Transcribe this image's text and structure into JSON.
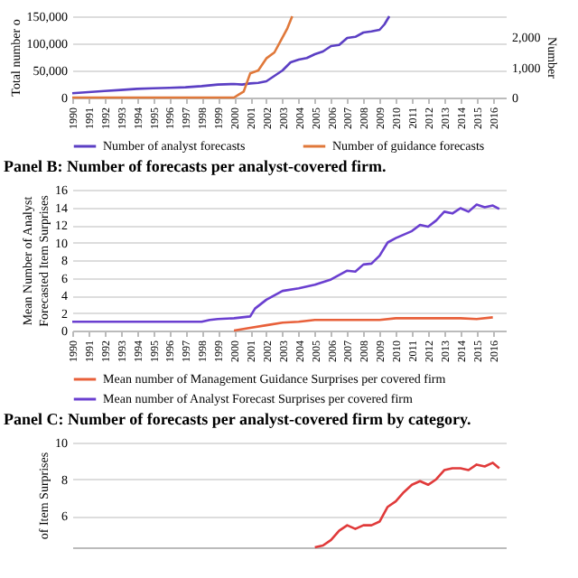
{
  "chart_data": [
    {
      "type": "line",
      "ylabel": "Total number o",
      "y2label": "Number",
      "xlim": [
        1990,
        2016.8
      ],
      "xticks": [
        1990,
        1991,
        1992,
        1993,
        1994,
        1995,
        1996,
        1997,
        1998,
        1999,
        2000,
        2001,
        2002,
        2003,
        2004,
        2005,
        2006,
        2007,
        2008,
        2009,
        2010,
        2011,
        2012,
        2013,
        2014,
        2015,
        2016
      ],
      "ylim": [
        0,
        150000
      ],
      "yticks": [
        0,
        {
          "value": 50000,
          "label": "50,000"
        },
        {
          "value": 100000,
          "label": "100,000"
        },
        {
          "value": 150000,
          "label": "150,000"
        }
      ],
      "y2lim": [
        0,
        2700
      ],
      "y2ticks": [
        0,
        {
          "value": 1000,
          "label": "1,000"
        },
        {
          "value": 2000,
          "label": "2,000"
        }
      ],
      "grid": "y",
      "legend": "bottom",
      "series": [
        {
          "name": "Number of analyst forecasts",
          "color": "#5b3fc4",
          "x": [
            1990,
            1991,
            1992,
            1993,
            1994,
            1995,
            1996,
            1997,
            1998,
            1999,
            2000,
            2000.5,
            2001,
            2001.5,
            2002,
            2002.5,
            2003,
            2003.5,
            2004,
            2004.5,
            2005,
            2005.5,
            2006,
            2006.5,
            2007,
            2007.5,
            2008,
            2008.5,
            2009,
            2009.3,
            2009.6
          ],
          "values": [
            8000,
            10000,
            12000,
            14000,
            16000,
            17000,
            18000,
            19000,
            21000,
            24000,
            25000,
            24000,
            26000,
            27000,
            30000,
            40000,
            50000,
            65000,
            70000,
            73000,
            80000,
            85000,
            95000,
            97000,
            110000,
            112000,
            120000,
            122000,
            125000,
            135000,
            150000
          ]
        },
        {
          "name": "Number of guidance forecasts",
          "color": "#e0783a",
          "axis": "y2",
          "x": [
            1990,
            1995,
            1999,
            2000,
            2000.3,
            2000.6,
            2001,
            2001.5,
            2002,
            2002.5,
            2003,
            2003.3,
            2003.6
          ],
          "values": [
            0,
            0,
            0,
            0,
            100,
            200,
            800,
            900,
            1300,
            1500,
            2000,
            2300,
            2700
          ]
        }
      ]
    },
    {
      "type": "line",
      "title": "Panel B: Number of forecasts per analyst-covered firm.",
      "ylabel": "Mean Number of Analyst Forecasted Item Surprises",
      "xlim": [
        1990,
        2016.8
      ],
      "xticks": [
        1990,
        1991,
        1992,
        1993,
        1994,
        1995,
        1996,
        1997,
        1998,
        1999,
        2000,
        2001,
        2002,
        2003,
        2004,
        2005,
        2006,
        2007,
        2008,
        2009,
        2010,
        2011,
        2012,
        2013,
        2014,
        2015,
        2016
      ],
      "ylim": [
        0,
        16
      ],
      "yticks": [
        0,
        2,
        4,
        6,
        8,
        10,
        12,
        14,
        16
      ],
      "grid": "y",
      "legend": "bottom",
      "series": [
        {
          "name": "Mean number of Management Guidance Surprises per covered firm",
          "color": "#e8603a",
          "x": [
            2000,
            2001,
            2002,
            2003,
            2004,
            2005,
            2006,
            2007,
            2008,
            2009,
            2010,
            2011,
            2012,
            2013,
            2014,
            2015,
            2016
          ],
          "values": [
            0,
            0.3,
            0.6,
            0.9,
            1.0,
            1.2,
            1.2,
            1.2,
            1.2,
            1.2,
            1.4,
            1.4,
            1.4,
            1.4,
            1.4,
            1.3,
            1.5
          ]
        },
        {
          "name": "Mean number of Analyst Forecast Surprises per covered firm",
          "color": "#6a3fd0",
          "x": [
            1990,
            1995,
            1998,
            1998.5,
            1999,
            2000,
            2001,
            2001.3,
            2002,
            2003,
            2004,
            2005,
            2006,
            2007,
            2007.5,
            2008,
            2008.5,
            2009,
            2009.5,
            2010,
            2011,
            2011.5,
            2012,
            2012.5,
            2013,
            2013.5,
            2014,
            2014.5,
            2015,
            2015.5,
            2016,
            2016.4
          ],
          "values": [
            1,
            1,
            1,
            1.2,
            1.3,
            1.4,
            1.6,
            2.5,
            3.5,
            4.5,
            4.8,
            5.2,
            5.8,
            6.8,
            6.7,
            7.5,
            7.6,
            8.5,
            10,
            10.5,
            11.3,
            12,
            11.8,
            12.5,
            13.5,
            13.3,
            13.9,
            13.5,
            14.3,
            14,
            14.2,
            13.8
          ]
        }
      ]
    },
    {
      "type": "line",
      "title": "Panel C: Number of forecasts per analyst-covered firm by category.",
      "ylabel": "of Item Surprises",
      "xlim": [
        1990,
        2016.8
      ],
      "ylim": [
        4.3,
        10
      ],
      "yticks": [
        6,
        8,
        10
      ],
      "grid": "y",
      "tick_labels": "y",
      "series": [
        {
          "color": "#e03a3a",
          "x": [
            2005,
            2005.5,
            2006,
            2006.5,
            2007,
            2007.5,
            2008,
            2008.5,
            2009,
            2009.5,
            2010,
            2010.5,
            2011,
            2011.5,
            2012,
            2012.5,
            2013,
            2013.5,
            2014,
            2014.5,
            2015,
            2015.5,
            2016,
            2016.4
          ],
          "values": [
            4.3,
            4.4,
            4.7,
            5.2,
            5.5,
            5.3,
            5.5,
            5.5,
            5.7,
            6.5,
            6.8,
            7.3,
            7.7,
            7.9,
            7.7,
            8,
            8.5,
            8.6,
            8.6,
            8.5,
            8.8,
            8.7,
            8.9,
            8.6
          ]
        }
      ]
    }
  ]
}
